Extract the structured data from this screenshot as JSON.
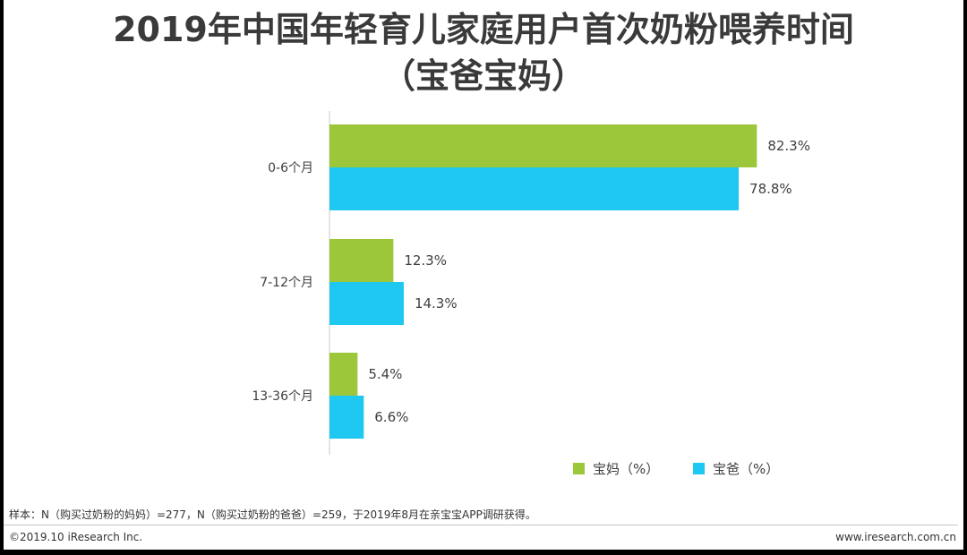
{
  "chart_data": {
    "type": "bar",
    "orientation": "horizontal",
    "title": "2019年中国年轻育儿家庭用户首次奶粉喂养时间",
    "subtitle": "（宝爸宝妈）",
    "categories": [
      "0-6个月",
      "7-12个月",
      "13-36个月"
    ],
    "series": [
      {
        "name": "宝妈（%）",
        "values": [
          82.3,
          12.3,
          5.4
        ],
        "labels": [
          "82.3%",
          "12.3%",
          "5.4%"
        ],
        "color": "#9dc73a"
      },
      {
        "name": "宝爸（%）",
        "values": [
          78.8,
          14.3,
          6.6
        ],
        "labels": [
          "78.8%",
          "14.3%",
          "6.6%"
        ],
        "color": "#1ec8f0"
      }
    ],
    "xlim": [
      0,
      100
    ],
    "grid": false,
    "legend": "bottom-right"
  },
  "footer": {
    "note": "样本：N（购买过奶粉的妈妈）=277，N（购买过奶粉的爸爸）=259，于2019年8月在亲宝宝APP调研获得。",
    "copyright": "©2019.10 iResearch Inc.",
    "site": "www.iresearch.com.cn"
  }
}
